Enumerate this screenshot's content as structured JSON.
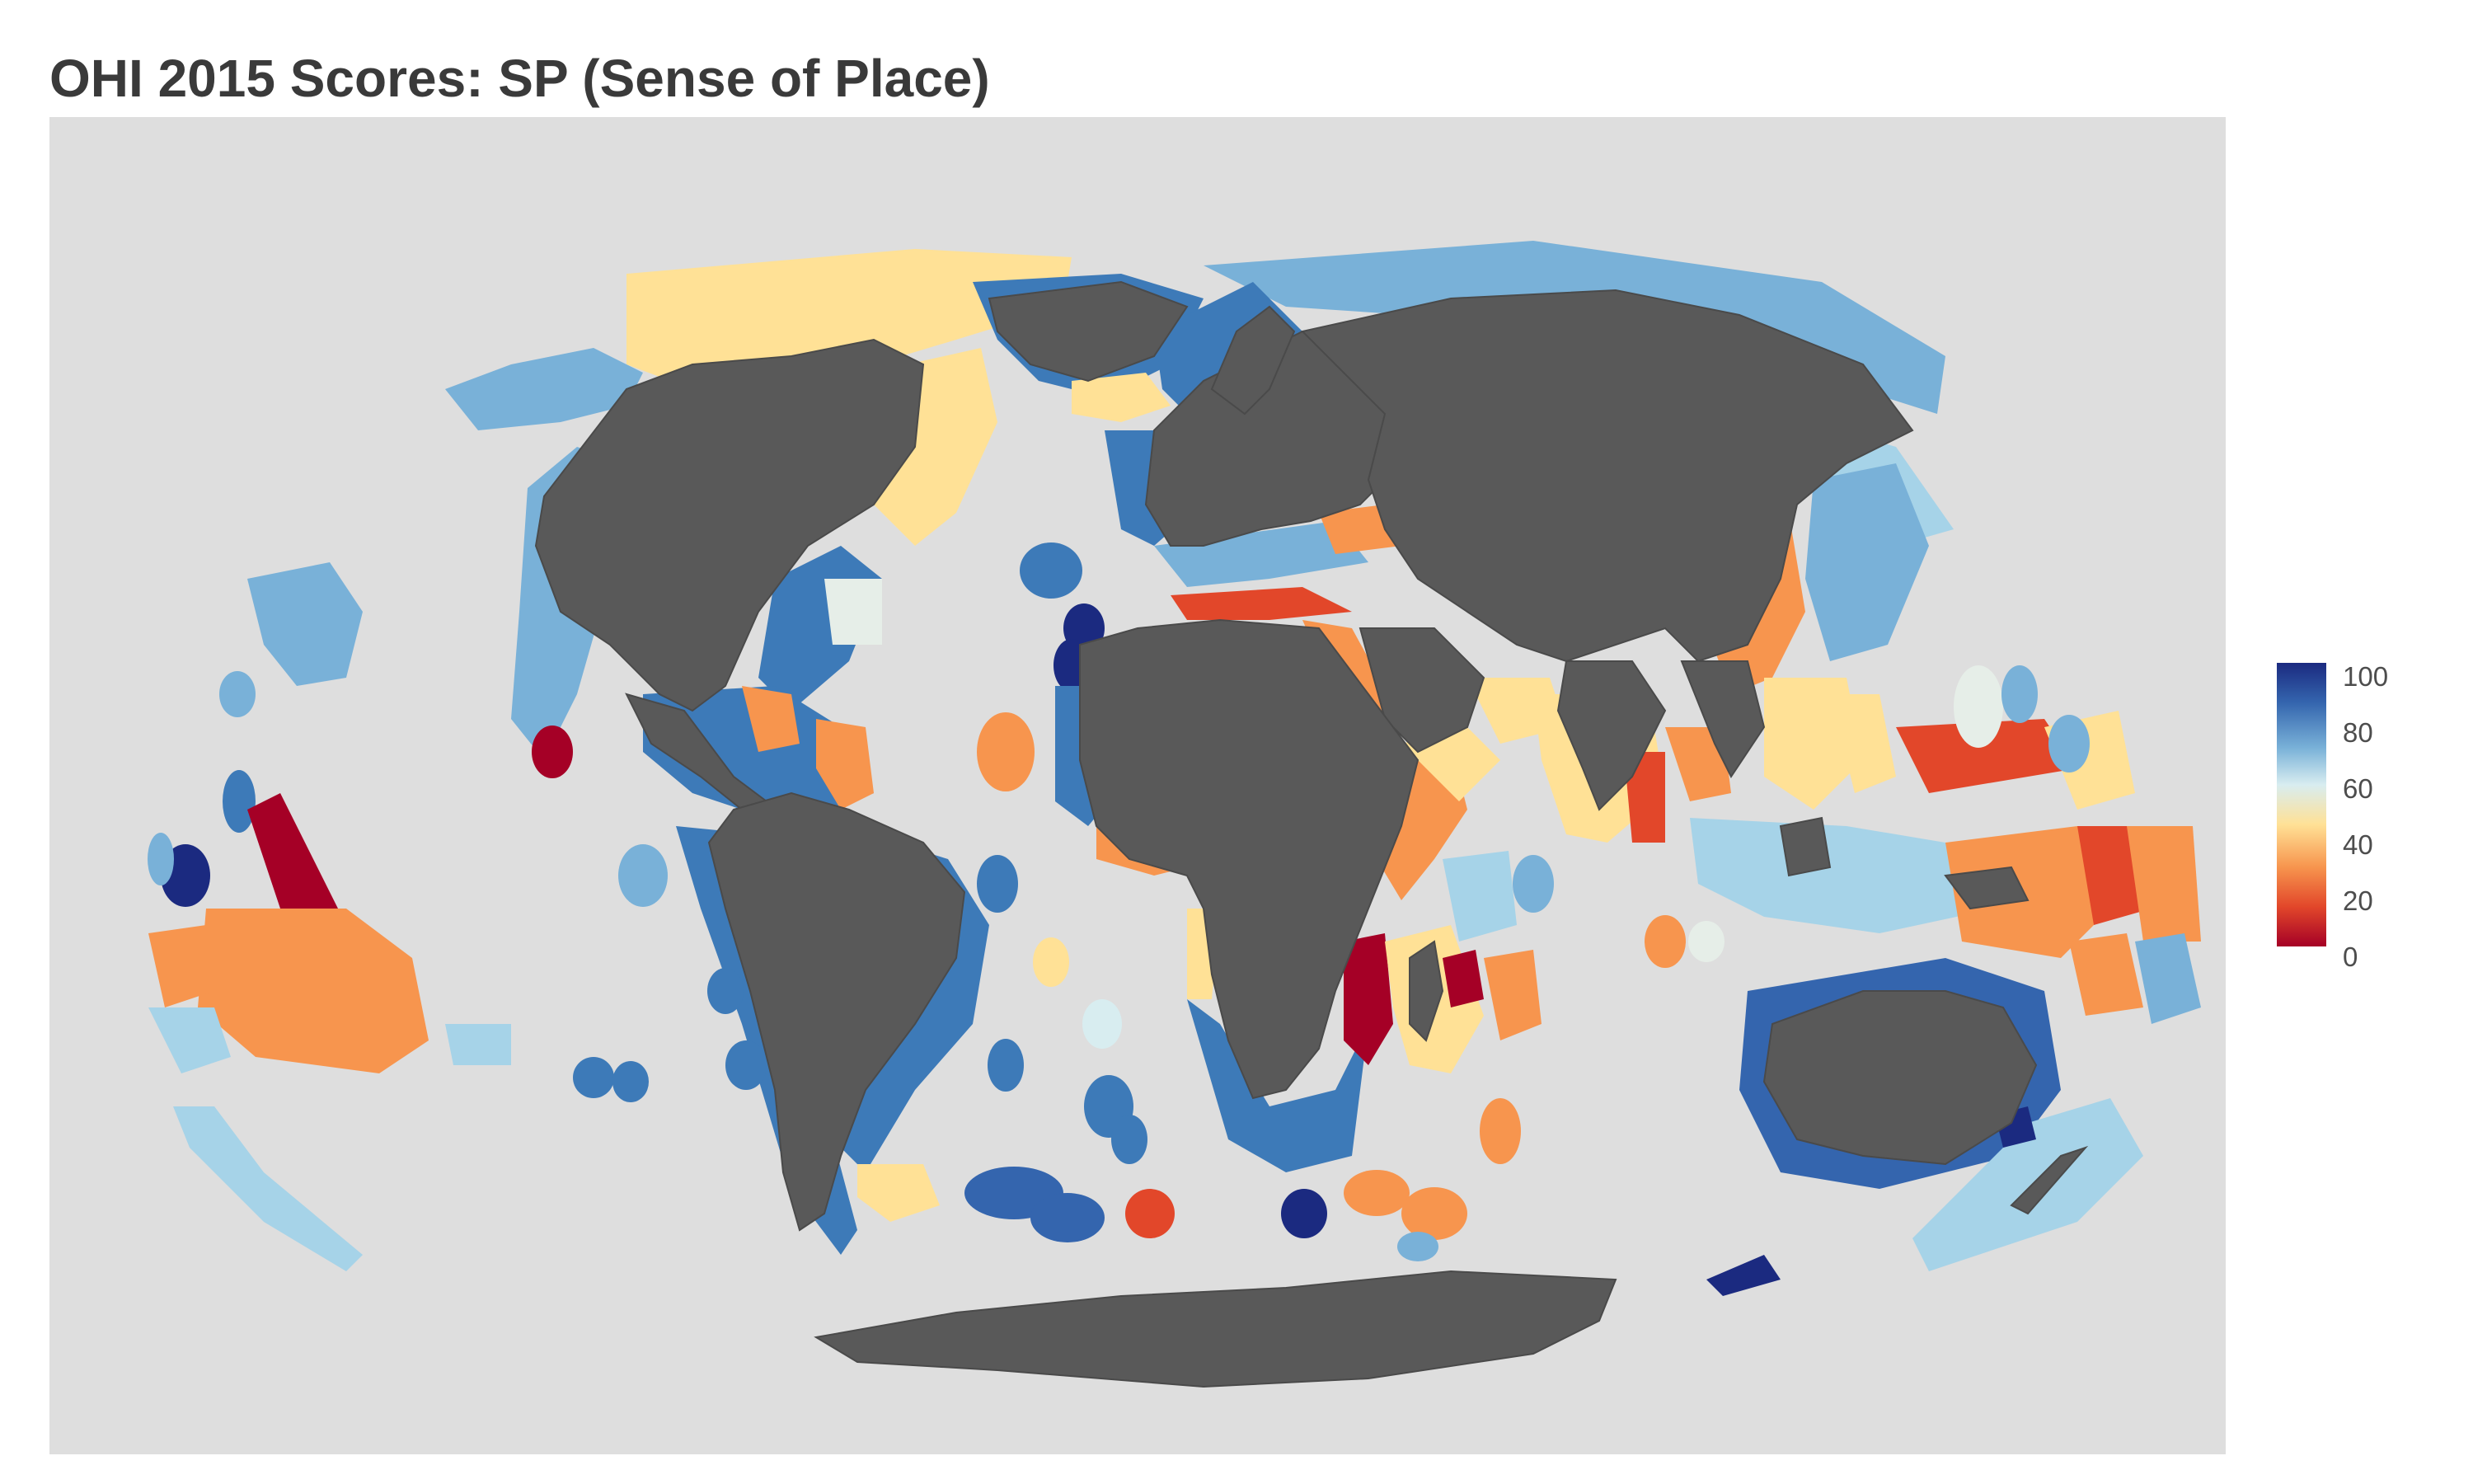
{
  "title": "OHI 2015 Scores: SP (Sense of Place)",
  "legend": {
    "ticks": [
      "100",
      "80",
      "60",
      "40",
      "20",
      "0"
    ],
    "colors": [
      "#1b2a80",
      "#3465ae",
      "#79b1d8",
      "#d8edf0",
      "#ffe196",
      "#f7954e",
      "#e2472a",
      "#a50026"
    ]
  },
  "colors": {
    "panel_background": "#dedede",
    "land": "#595959",
    "land_border": "#4a4a4a"
  }
}
